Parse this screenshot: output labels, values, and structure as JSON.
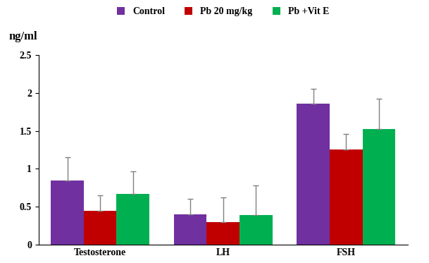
{
  "chart_data": {
    "type": "bar",
    "y_label": "ng/ml",
    "categories": [
      "Testosterone",
      "LH",
      "FSH"
    ],
    "series": [
      {
        "name": "Control",
        "color": "#7030a0",
        "values": [
          0.85,
          0.4,
          1.86
        ],
        "errors": [
          0.3,
          0.2,
          0.2
        ]
      },
      {
        "name": "Pb 20 mg/kg",
        "color": "#c00000",
        "values": [
          0.45,
          0.3,
          1.26
        ],
        "errors": [
          0.2,
          0.32,
          0.2
        ]
      },
      {
        "name": "Pb +Vit E",
        "color": "#00b050",
        "values": [
          0.67,
          0.39,
          1.53
        ],
        "errors": [
          0.3,
          0.39,
          0.4
        ]
      }
    ],
    "ylim": [
      0,
      2.5
    ],
    "yticks": [
      0,
      0.5,
      1,
      1.5,
      2,
      2.5
    ],
    "grid": false,
    "legend": "upper center"
  }
}
